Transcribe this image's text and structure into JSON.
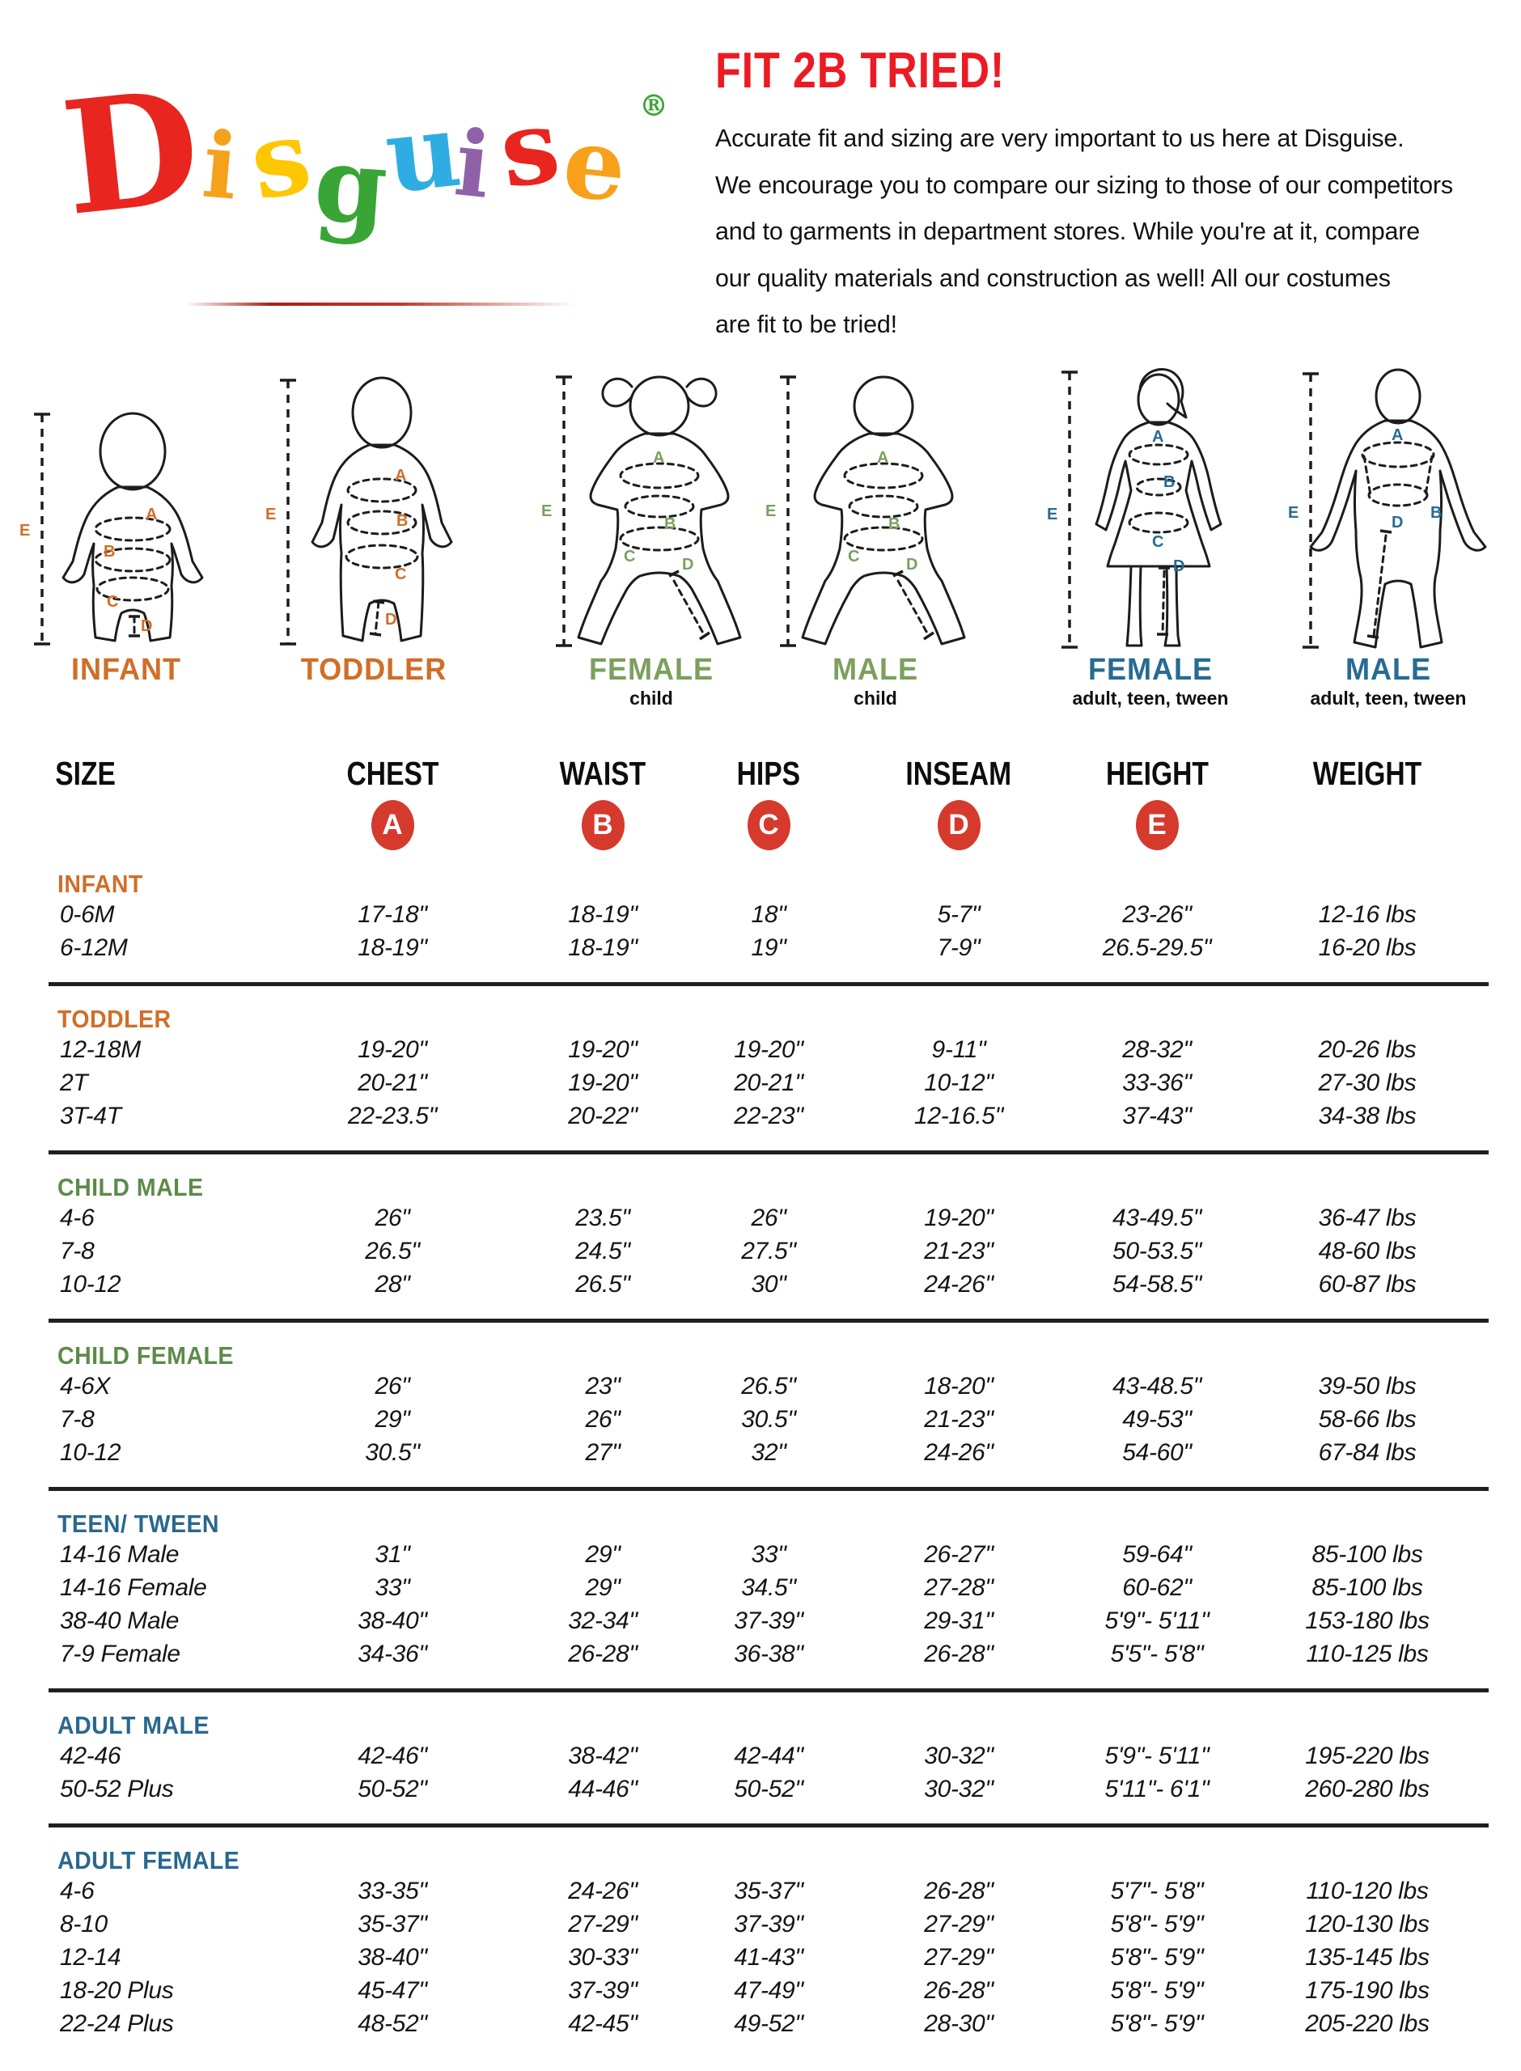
{
  "logo": {
    "letters": [
      {
        "char": "D",
        "color": "#e8251f"
      },
      {
        "char": "i",
        "color": "#f5a11c"
      },
      {
        "char": "s",
        "color": "#fdc800"
      },
      {
        "char": "g",
        "color": "#3aa537"
      },
      {
        "char": "u",
        "color": "#2fade3"
      },
      {
        "char": "i",
        "color": "#8f62a8"
      },
      {
        "char": "s",
        "color": "#e8251f"
      },
      {
        "char": "e",
        "color": "#f7a11b"
      }
    ],
    "registered": "®",
    "registered_color": "#3aa537"
  },
  "intro": {
    "heading": "FIT 2B TRIED!",
    "heading_color": "#ec1b23",
    "lines": [
      "Accurate fit and sizing are very important to us here at Disguise.",
      "We encourage you to compare our sizing to those of our competitors",
      "and to garments in department stores. While you're at it, compare",
      "our quality materials and construction as well! All our costumes",
      "are fit to be tried!"
    ]
  },
  "measures": [
    {
      "letter": "A",
      "maps_to": "CHEST"
    },
    {
      "letter": "B",
      "maps_to": "WAIST"
    },
    {
      "letter": "C",
      "maps_to": "HIPS"
    },
    {
      "letter": "D",
      "maps_to": "INSEAM"
    },
    {
      "letter": "E",
      "maps_to": "HEIGHT"
    }
  ],
  "figures": {
    "items": [
      {
        "id": "infant",
        "label": "INFANT",
        "sublabel": "",
        "color": "#d06e28"
      },
      {
        "id": "toddler",
        "label": "TODDLER",
        "sublabel": "",
        "color": "#d06e28"
      },
      {
        "id": "female-child",
        "label": "FEMALE",
        "sublabel": "child",
        "color": "#7ba05e"
      },
      {
        "id": "male-child",
        "label": "MALE",
        "sublabel": "child",
        "color": "#7ba05e"
      },
      {
        "id": "female-adult",
        "label": "FEMALE",
        "sublabel": "adult, teen, tween",
        "color": "#276b93"
      },
      {
        "id": "male-adult",
        "label": "MALE",
        "sublabel": "adult, teen, tween",
        "color": "#276b93"
      }
    ]
  },
  "table": {
    "headers": [
      "SIZE",
      "CHEST",
      "WAIST",
      "HIPS",
      "INSEAM",
      "HEIGHT",
      "WEIGHT"
    ],
    "badge_color": "#d53a2d",
    "sections": [
      {
        "id": "infant",
        "name": "INFANT",
        "color": "#d06e28",
        "rows": [
          [
            "0-6M",
            "17-18\"",
            "18-19\"",
            "18\"",
            "5-7\"",
            "23-26\"",
            "12-16 lbs"
          ],
          [
            "6-12M",
            "18-19\"",
            "18-19\"",
            "19\"",
            "7-9\"",
            "26.5-29.5\"",
            "16-20 lbs"
          ]
        ]
      },
      {
        "id": "toddler",
        "name": "TODDLER",
        "color": "#d06e28",
        "rows": [
          [
            "12-18M",
            "19-20\"",
            "19-20\"",
            "19-20\"",
            "9-11\"",
            "28-32\"",
            "20-26 lbs"
          ],
          [
            "2T",
            "20-21\"",
            "19-20\"",
            "20-21\"",
            "10-12\"",
            "33-36\"",
            "27-30 lbs"
          ],
          [
            "3T-4T",
            "22-23.5\"",
            "20-22\"",
            "22-23\"",
            "12-16.5\"",
            "37-43\"",
            "34-38 lbs"
          ]
        ]
      },
      {
        "id": "child-male",
        "name": "CHILD MALE",
        "color": "#5d8a4a",
        "rows": [
          [
            "4-6",
            "26\"",
            "23.5\"",
            "26\"",
            "19-20\"",
            "43-49.5\"",
            "36-47 lbs"
          ],
          [
            "7-8",
            "26.5\"",
            "24.5\"",
            "27.5\"",
            "21-23\"",
            "50-53.5\"",
            "48-60 lbs"
          ],
          [
            "10-12",
            "28\"",
            "26.5\"",
            "30\"",
            "24-26\"",
            "54-58.5\"",
            "60-87 lbs"
          ]
        ]
      },
      {
        "id": "child-female",
        "name": "CHILD FEMALE",
        "color": "#5d8a4a",
        "rows": [
          [
            "4-6X",
            "26\"",
            "23\"",
            "26.5\"",
            "18-20\"",
            "43-48.5\"",
            "39-50 lbs"
          ],
          [
            "7-8",
            "29\"",
            "26\"",
            "30.5\"",
            "21-23\"",
            "49-53\"",
            "58-66 lbs"
          ],
          [
            "10-12",
            "30.5\"",
            "27\"",
            "32\"",
            "24-26\"",
            "54-60\"",
            "67-84 lbs"
          ]
        ]
      },
      {
        "id": "teen-tween",
        "name": "TEEN/ TWEEN",
        "color": "#29688e",
        "rows": [
          [
            "14-16 Male",
            "31\"",
            "29\"",
            "33\"",
            "26-27\"",
            "59-64\"",
            "85-100 lbs"
          ],
          [
            "14-16 Female",
            "33\"",
            "29\"",
            "34.5\"",
            "27-28\"",
            "60-62\"",
            "85-100 lbs"
          ],
          [
            "38-40 Male",
            "38-40\"",
            "32-34\"",
            "37-39\"",
            "29-31\"",
            "5'9\"- 5'11\"",
            "153-180 lbs"
          ],
          [
            "7-9 Female",
            "34-36\"",
            "26-28\"",
            "36-38\"",
            "26-28\"",
            "5'5\"- 5'8\"",
            "110-125 lbs"
          ]
        ]
      },
      {
        "id": "adult-male",
        "name": "ADULT MALE",
        "color": "#29688e",
        "rows": [
          [
            "42-46",
            "42-46\"",
            "38-42\"",
            "42-44\"",
            "30-32\"",
            "5'9\"- 5'11\"",
            "195-220 lbs"
          ],
          [
            "50-52 Plus",
            "50-52\"",
            "44-46\"",
            "50-52\"",
            "30-32\"",
            "5'11\"- 6'1\"",
            "260-280 lbs"
          ]
        ]
      },
      {
        "id": "adult-female",
        "name": "ADULT FEMALE",
        "color": "#29688e",
        "rows": [
          [
            "4-6",
            "33-35\"",
            "24-26\"",
            "35-37\"",
            "26-28\"",
            "5'7\"- 5'8\"",
            "110-120 lbs"
          ],
          [
            "8-10",
            "35-37\"",
            "27-29\"",
            "37-39\"",
            "27-29\"",
            "5'8\"- 5'9\"",
            "120-130 lbs"
          ],
          [
            "12-14",
            "38-40\"",
            "30-33\"",
            "41-43\"",
            "27-29\"",
            "5'8\"- 5'9\"",
            "135-145 lbs"
          ],
          [
            "18-20 Plus",
            "45-47\"",
            "37-39\"",
            "47-49\"",
            "26-28\"",
            "5'8\"- 5'9\"",
            "175-190 lbs"
          ],
          [
            "22-24 Plus",
            "48-52\"",
            "42-45\"",
            "49-52\"",
            "28-30\"",
            "5'8\"- 5'9\"",
            "205-220 lbs"
          ]
        ]
      }
    ]
  }
}
